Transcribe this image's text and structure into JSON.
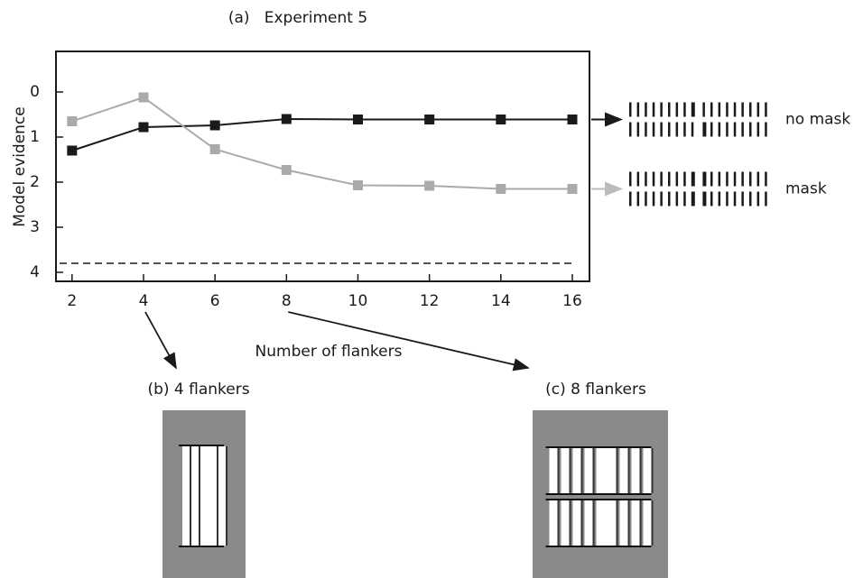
{
  "chart_data": {
    "type": "line",
    "title": "(a)   Experiment 5",
    "x_label": "Number of flankers",
    "y_label": "Model evidence",
    "x": [
      2,
      4,
      6,
      8,
      10,
      12,
      14,
      16
    ],
    "series": [
      {
        "name": "no mask",
        "color": "#1a1a1a",
        "values": [
          1.3,
          0.78,
          0.74,
          0.6,
          0.61,
          0.61,
          0.61,
          0.61
        ]
      },
      {
        "name": "mask",
        "color": "#aaaaaa",
        "values": [
          0.65,
          0.12,
          1.27,
          1.73,
          2.07,
          2.08,
          2.15,
          2.15
        ]
      }
    ],
    "xlim": [
      1.55,
      16.48
    ],
    "xticks": [
      2,
      4,
      6,
      8,
      10,
      12,
      14,
      16
    ],
    "ylim": [
      -0.9,
      4.2
    ],
    "yticks": [
      0,
      1,
      2,
      3,
      4
    ],
    "y_inverted": true,
    "reference_line": 3.8,
    "panels": [
      {
        "label": "(b) 4 flankers",
        "from_x": 4
      },
      {
        "label": "(c) 8 flankers",
        "from_x": 8
      }
    ]
  }
}
